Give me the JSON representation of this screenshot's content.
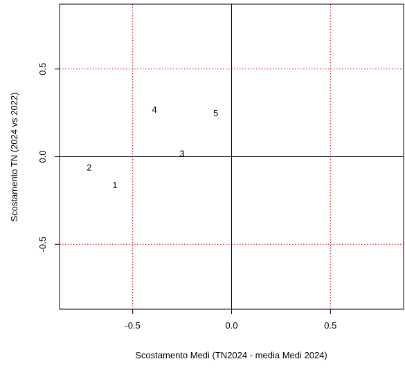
{
  "chart_data": {
    "type": "scatter",
    "title": "",
    "xlabel": "Scostamento Medi (TN2024 - media Medi 2024)",
    "ylabel": "Scostamento TN (2024 vs 2022)",
    "xlim": [
      -0.87,
      0.87
    ],
    "ylim": [
      -0.87,
      0.87
    ],
    "x_ticks": [
      -0.5,
      0.0,
      0.5
    ],
    "x_tick_labels": [
      "-0.5",
      "0.0",
      "0.5"
    ],
    "y_ticks": [
      -0.5,
      0.0,
      0.5
    ],
    "y_tick_labels": [
      "-0.5",
      "0.0",
      "0.5"
    ],
    "reference_lines": {
      "solid_black": {
        "x": [
          0.0
        ],
        "y": [
          0.0
        ]
      },
      "dotted_red": {
        "x": [
          -0.5,
          0.5
        ],
        "y": [
          -0.5,
          0.5
        ]
      }
    },
    "grid": false,
    "marker": "text-label",
    "points": [
      {
        "label": "1",
        "x": -0.59,
        "y": -0.16
      },
      {
        "label": "2",
        "x": -0.72,
        "y": -0.06
      },
      {
        "label": "3",
        "x": -0.25,
        "y": 0.02
      },
      {
        "label": "4",
        "x": -0.39,
        "y": 0.27
      },
      {
        "label": "5",
        "x": -0.08,
        "y": 0.25
      }
    ],
    "colors": {
      "reference": "#000000",
      "dotted": "#cc0000",
      "text": "#000000"
    }
  }
}
